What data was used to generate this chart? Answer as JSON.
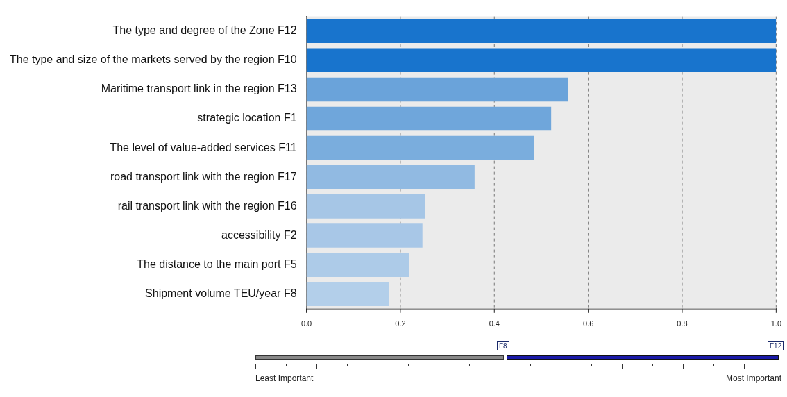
{
  "chart_data": {
    "type": "bar",
    "orientation": "horizontal",
    "categories": [
      "The type and degree of the Zone F12",
      "The type and size of the markets served by the region F10",
      "Maritime transport link in the region F13",
      "strategic location F1",
      "The level of value-added services F11",
      "road transport link with the region F17",
      "rail transport link with the region F16",
      "accessibility F2",
      "The distance to the main port F5",
      "Shipment volume TEU/year F8"
    ],
    "values": [
      1.0,
      1.0,
      0.557,
      0.521,
      0.485,
      0.358,
      0.252,
      0.247,
      0.219,
      0.175
    ],
    "colors": [
      "#1874cd",
      "#1874cd",
      "#6aa3da",
      "#6fa6db",
      "#7aaddd",
      "#91bae2",
      "#a6c6e6",
      "#a8c7e7",
      "#adcbe8",
      "#b3cfea"
    ],
    "xlim": [
      0,
      1
    ],
    "xticks": [
      {
        "value": 0,
        "label": "0.0"
      },
      {
        "value": 0.2,
        "label": "0.2"
      },
      {
        "value": 0.4,
        "label": "0.4"
      },
      {
        "value": 0.6,
        "label": "0.6"
      },
      {
        "value": 0.8,
        "label": "0.8"
      },
      {
        "value": 1,
        "label": "1.0"
      }
    ],
    "grid": "x",
    "legend": false,
    "annotations": [
      "F8",
      "F12",
      "Least Important",
      "Most Important"
    ]
  }
}
